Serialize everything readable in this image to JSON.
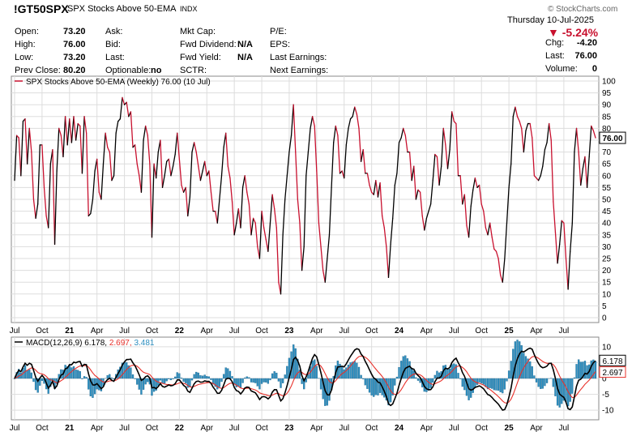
{
  "header": {
    "symbol": "!GT50SPX",
    "name": "SPX Stocks Above 50-EMA",
    "exchange": "INDX",
    "date": "Thursday  10-Jul-2025",
    "watermark": "© StockCharts.com",
    "change_pct": "-5.24%",
    "col1": [
      {
        "label": "Open:",
        "value": "73.20"
      },
      {
        "label": "High:",
        "value": "76.00"
      },
      {
        "label": "Low:",
        "value": "73.20"
      },
      {
        "label": "Prev Close:",
        "value": "80.20"
      }
    ],
    "col2": [
      {
        "label": "Ask:",
        "value": ""
      },
      {
        "label": "Bid:",
        "value": ""
      },
      {
        "label": "Last:",
        "value": ""
      },
      {
        "label": "Optionable:",
        "value": "no"
      }
    ],
    "col3": [
      {
        "label": "Mkt Cap:",
        "value": ""
      },
      {
        "label": "Fwd Dividend:",
        "value": "N/A"
      },
      {
        "label": "Fwd Yield:",
        "value": "N/A"
      },
      {
        "label": "SCTR:",
        "value": ""
      }
    ],
    "col4": [
      {
        "label": "P/E:",
        "value": ""
      },
      {
        "label": "EPS:",
        "value": ""
      },
      {
        "label": "Last Earnings:",
        "value": ""
      },
      {
        "label": "Next Earnings:",
        "value": ""
      }
    ],
    "col5": [
      {
        "label": "Chg:",
        "value": "-4.20"
      },
      {
        "label": "Last:",
        "value": "76.00"
      },
      {
        "label": "Volume:",
        "value": "0"
      }
    ]
  },
  "colors": {
    "up": "#000000",
    "down": "#c8102e",
    "macd": "#000000",
    "signal": "#e8302a",
    "hist": "#2e8fc0",
    "grid": "#dddddd"
  },
  "chart_data": [
    {
      "type": "line",
      "legend": "SPX Stocks Above 50-EMA (Weekly) 76.00 (10 Jul)",
      "last_value": "76.00",
      "ylim": [
        0,
        100
      ],
      "yticks": [
        0,
        5,
        10,
        15,
        20,
        25,
        30,
        35,
        40,
        45,
        50,
        55,
        60,
        65,
        70,
        75,
        80,
        85,
        90,
        95,
        100
      ],
      "x_tick_labels": [
        "Jul",
        "Oct",
        "21",
        "Apr",
        "Jul",
        "Oct",
        "22",
        "Apr",
        "Jul",
        "Oct",
        "23",
        "Apr",
        "Jul",
        "Oct",
        "24",
        "Apr",
        "Jul",
        "Oct",
        "25",
        "Apr",
        "Jul"
      ],
      "x_tick_bold": [
        false,
        false,
        true,
        false,
        false,
        false,
        true,
        false,
        false,
        false,
        true,
        false,
        false,
        false,
        true,
        false,
        false,
        false,
        true,
        false,
        false
      ],
      "x_tick_pos": [
        0,
        13,
        26,
        39,
        52,
        65,
        78,
        91,
        104,
        117,
        130,
        143,
        156,
        169,
        182,
        195,
        208,
        221,
        234,
        247,
        260
      ],
      "series_values": [
        58,
        77,
        76,
        60,
        83,
        84,
        65,
        80,
        70,
        50,
        42,
        48,
        73,
        73,
        55,
        43,
        38,
        65,
        71,
        31,
        62,
        80,
        77,
        68,
        85,
        73,
        84,
        74,
        85,
        75,
        82,
        81,
        61,
        85,
        78,
        43,
        44,
        50,
        62,
        67,
        53,
        50,
        65,
        78,
        72,
        70,
        58,
        60,
        78,
        83,
        84,
        93,
        90,
        91,
        85,
        87,
        72,
        73,
        65,
        60,
        53,
        75,
        81,
        77,
        65,
        34,
        65,
        59,
        70,
        75,
        55,
        60,
        66,
        67,
        60,
        64,
        69,
        78,
        67,
        56,
        53,
        55,
        43,
        51,
        70,
        74,
        70,
        64,
        58,
        62,
        66,
        60,
        62,
        53,
        45,
        45,
        40,
        50,
        60,
        72,
        78,
        64,
        59,
        49,
        35,
        40,
        46,
        38,
        55,
        60,
        53,
        48,
        35,
        42,
        40,
        30,
        25,
        45,
        38,
        33,
        28,
        40,
        52,
        46,
        38,
        15,
        10,
        35,
        50,
        60,
        70,
        77,
        90,
        70,
        50,
        40,
        20,
        30,
        60,
        70,
        80,
        85,
        81,
        62,
        40,
        30,
        20,
        15,
        25,
        35,
        55,
        74,
        81,
        77,
        61,
        62,
        59,
        73,
        80,
        84,
        85,
        89,
        86,
        80,
        66,
        71,
        61,
        61,
        56,
        53,
        52,
        58,
        51,
        57,
        43,
        38,
        30,
        17,
        31,
        42,
        56,
        61,
        74,
        76,
        80,
        77,
        70,
        70,
        58,
        64,
        50,
        54,
        53,
        43,
        37,
        42,
        45,
        48,
        58,
        69,
        68,
        56,
        64,
        80,
        73,
        63,
        71,
        87,
        83,
        82,
        60,
        60,
        48,
        52,
        39,
        34,
        47,
        54,
        59,
        55,
        56,
        48,
        45,
        38,
        35,
        40,
        34,
        29,
        28,
        25,
        18,
        15,
        25,
        40,
        55,
        65,
        85,
        89,
        85,
        83,
        80,
        70,
        79,
        82,
        82,
        76,
        60,
        59,
        58,
        60,
        64,
        71,
        74,
        82,
        75,
        49,
        36,
        23,
        31,
        41,
        40,
        25,
        12,
        28,
        40,
        70,
        80,
        70,
        56,
        63,
        68,
        55,
        68,
        81,
        79,
        76
      ]
    },
    {
      "type": "line",
      "legend_prefix": "MACD(12,26,9)",
      "macd_value": "6.178",
      "signal_value": "2.697",
      "hist_value": "3.481",
      "ylim": [
        -12,
        12
      ],
      "yticks": [
        10,
        5,
        0,
        -5,
        -10
      ]
    }
  ]
}
